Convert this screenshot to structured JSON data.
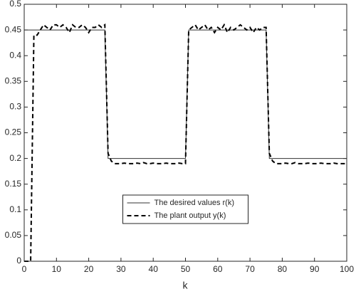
{
  "chart_data": {
    "type": "line",
    "x_label": "k",
    "x": [
      0,
      1,
      2,
      3,
      4,
      5,
      6,
      7,
      8,
      9,
      10,
      11,
      12,
      13,
      14,
      15,
      16,
      17,
      18,
      19,
      20,
      21,
      22,
      23,
      24,
      25,
      26,
      27,
      28,
      29,
      30,
      31,
      32,
      33,
      34,
      35,
      36,
      37,
      38,
      39,
      40,
      41,
      42,
      43,
      44,
      45,
      46,
      47,
      48,
      49,
      50,
      51,
      52,
      53,
      54,
      55,
      56,
      57,
      58,
      59,
      60,
      61,
      62,
      63,
      64,
      65,
      66,
      67,
      68,
      69,
      70,
      71,
      72,
      73,
      74,
      75,
      76,
      77,
      78,
      79,
      80,
      81,
      82,
      83,
      84,
      85,
      86,
      87,
      88,
      89,
      90,
      91,
      92,
      93,
      94,
      95,
      96,
      97,
      98,
      99,
      100
    ],
    "series": [
      {
        "name": "The desired values r(k)",
        "color": "#333333",
        "dash": "solid",
        "values": [
          0.45,
          0.45,
          0.45,
          0.45,
          0.45,
          0.45,
          0.45,
          0.45,
          0.45,
          0.45,
          0.45,
          0.45,
          0.45,
          0.45,
          0.45,
          0.45,
          0.45,
          0.45,
          0.45,
          0.45,
          0.45,
          0.45,
          0.45,
          0.45,
          0.45,
          0.45,
          0.2,
          0.2,
          0.2,
          0.2,
          0.2,
          0.2,
          0.2,
          0.2,
          0.2,
          0.2,
          0.2,
          0.2,
          0.2,
          0.2,
          0.2,
          0.2,
          0.2,
          0.2,
          0.2,
          0.2,
          0.2,
          0.2,
          0.2,
          0.2,
          0.2,
          0.45,
          0.45,
          0.45,
          0.45,
          0.45,
          0.45,
          0.45,
          0.45,
          0.45,
          0.45,
          0.45,
          0.45,
          0.45,
          0.45,
          0.45,
          0.45,
          0.45,
          0.45,
          0.45,
          0.45,
          0.45,
          0.45,
          0.45,
          0.45,
          0.45,
          0.2,
          0.2,
          0.2,
          0.2,
          0.2,
          0.2,
          0.2,
          0.2,
          0.2,
          0.2,
          0.2,
          0.2,
          0.2,
          0.2,
          0.2,
          0.2,
          0.2,
          0.2,
          0.2,
          0.2,
          0.2,
          0.2,
          0.2,
          0.2,
          0.2
        ]
      },
      {
        "name": "The plant output y(k)",
        "color": "#000000",
        "dash": "dashed",
        "values": [
          0,
          0,
          0,
          0.44,
          0.44,
          0.45,
          0.46,
          0.455,
          0.45,
          0.46,
          0.46,
          0.455,
          0.46,
          0.455,
          0.445,
          0.46,
          0.455,
          0.455,
          0.46,
          0.455,
          0.445,
          0.455,
          0.455,
          0.46,
          0.455,
          0.46,
          0.21,
          0.195,
          0.19,
          0.19,
          0.19,
          0.191,
          0.19,
          0.19,
          0.19,
          0.191,
          0.19,
          0.192,
          0.19,
          0.19,
          0.191,
          0.19,
          0.19,
          0.19,
          0.191,
          0.19,
          0.19,
          0.19,
          0.191,
          0.19,
          0.19,
          0.45,
          0.455,
          0.46,
          0.45,
          0.455,
          0.46,
          0.45,
          0.455,
          0.445,
          0.455,
          0.45,
          0.46,
          0.445,
          0.455,
          0.45,
          0.455,
          0.46,
          0.455,
          0.45,
          0.455,
          0.445,
          0.455,
          0.45,
          0.455,
          0.455,
          0.21,
          0.195,
          0.19,
          0.19,
          0.19,
          0.191,
          0.19,
          0.19,
          0.192,
          0.19,
          0.19,
          0.19,
          0.191,
          0.19,
          0.19,
          0.19,
          0.191,
          0.19,
          0.19,
          0.19,
          0.191,
          0.19,
          0.19,
          0.19,
          0.19
        ]
      }
    ],
    "xlim": [
      0,
      100
    ],
    "xticks": [
      0,
      10,
      20,
      30,
      40,
      50,
      60,
      70,
      80,
      90,
      100
    ],
    "ylim": [
      0,
      0.5
    ],
    "yticks": [
      0,
      0.05,
      0.1,
      0.15,
      0.2,
      0.25,
      0.3,
      0.35,
      0.4,
      0.45,
      0.5
    ],
    "grid": false,
    "legend": "lower center"
  }
}
